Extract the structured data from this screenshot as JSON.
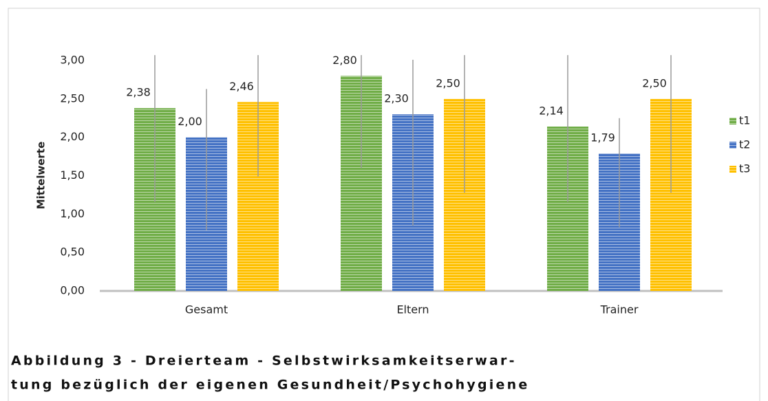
{
  "chart_data": {
    "type": "bar",
    "y_label": "Mittelwerte",
    "categories": [
      "Gesamt",
      "Eltern",
      "Trainer"
    ],
    "series": [
      {
        "name": "t1",
        "color": "#70ad47",
        "values": [
          2.38,
          2.8,
          2.14
        ],
        "value_labels": [
          "2,38",
          "2,80",
          "2,14"
        ],
        "low": [
          1.16,
          1.6,
          1.16
        ],
        "high": [
          3.07,
          3.07,
          3.07
        ]
      },
      {
        "name": "t2",
        "color": "#4472c4",
        "values": [
          2.0,
          2.3,
          1.79
        ],
        "value_labels": [
          "2,00",
          "2,30",
          "1,79"
        ],
        "low": [
          0.79,
          0.85,
          0.83
        ],
        "high": [
          2.63,
          3.01,
          2.25
        ]
      },
      {
        "name": "t3",
        "color": "#ffc000",
        "values": [
          2.46,
          2.5,
          2.5
        ],
        "value_labels": [
          "2,46",
          "2,50",
          "2,50"
        ],
        "low": [
          1.49,
          1.28,
          1.28
        ],
        "high": [
          3.07,
          3.07,
          3.07
        ]
      }
    ],
    "ylim": [
      0,
      3
    ],
    "yticks": [
      {
        "value": 0,
        "label": "0,00"
      },
      {
        "value": 0.5,
        "label": "0,50"
      },
      {
        "value": 1,
        "label": "1,00"
      },
      {
        "value": 1.5,
        "label": "1,50"
      },
      {
        "value": 2,
        "label": "2,00"
      },
      {
        "value": 2.5,
        "label": "2,50"
      },
      {
        "value": 3,
        "label": "3,00"
      }
    ],
    "legend": "right",
    "caption": [
      "Abbildung 3 - Dreierteam - Selbstwirksamkeitserwar-",
      "tung bezüglich der eigenen Gesundheit/Psychohygiene"
    ]
  }
}
